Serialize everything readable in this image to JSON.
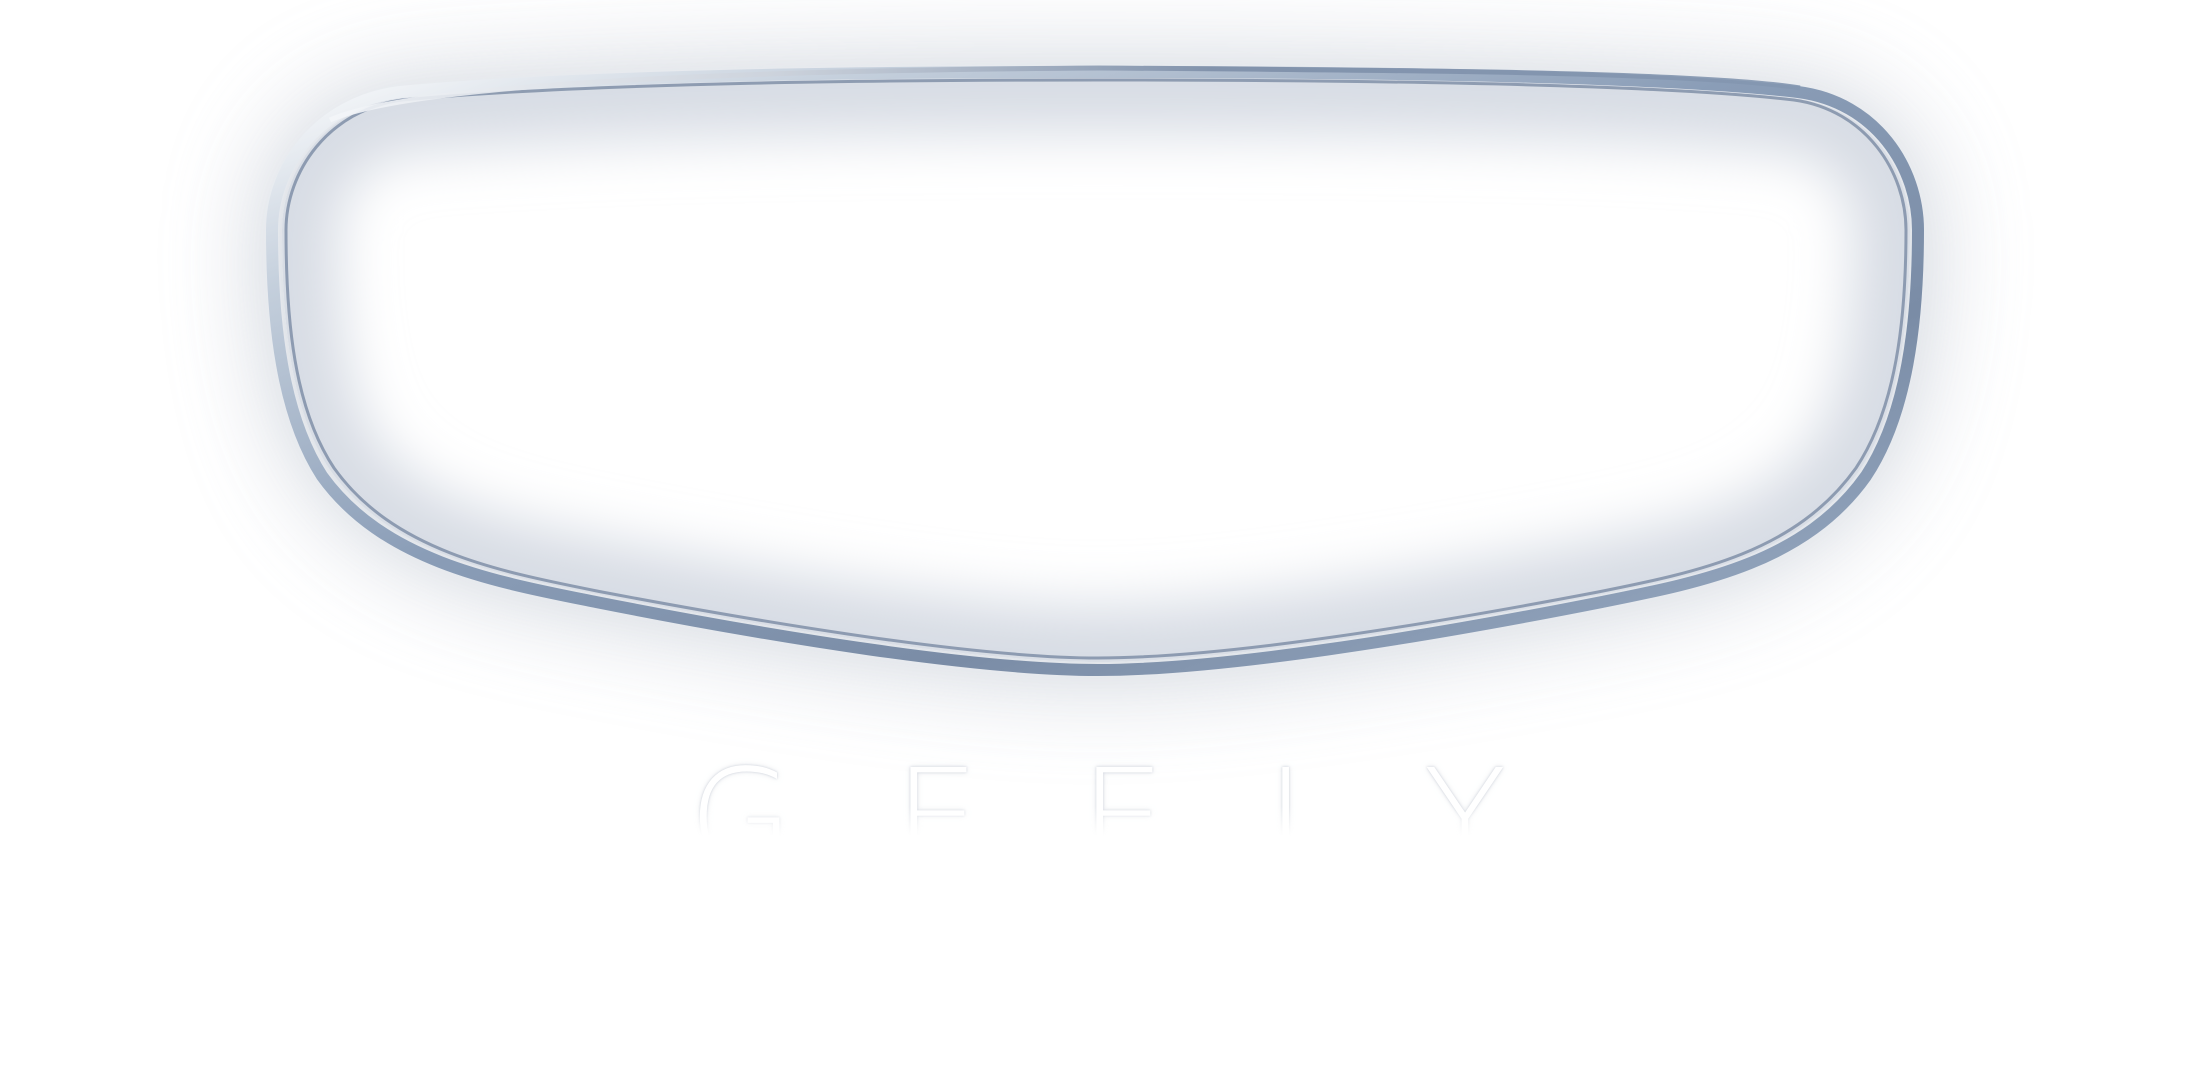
{
  "brand": {
    "wordmark": "GEELY",
    "emblem_name": "shield-emblem-icon"
  },
  "colors": {
    "background": "#ffffff",
    "rim_dark": "#6e7f98",
    "rim_mid": "#94a8c2",
    "rim_light": "#dfe6ee",
    "shadow": "#c9ced8"
  }
}
